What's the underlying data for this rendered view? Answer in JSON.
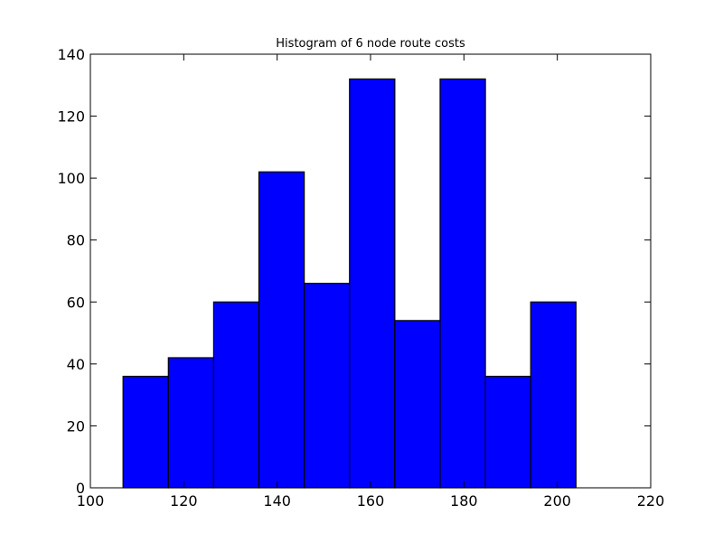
{
  "chart_data": {
    "type": "bar",
    "title": "Histogram of 6 node route costs",
    "xlabel": "",
    "ylabel": "",
    "bin_edges": [
      107,
      116.7,
      126.4,
      136.1,
      145.8,
      155.5,
      165.2,
      174.9,
      184.6,
      194.3,
      204
    ],
    "values": [
      36,
      42,
      60,
      102,
      66,
      132,
      54,
      132,
      36,
      60
    ],
    "xlim": [
      100,
      220
    ],
    "ylim": [
      0,
      140
    ],
    "xticks": [
      "100",
      "120",
      "140",
      "160",
      "180",
      "200",
      "220"
    ],
    "yticks": [
      "0",
      "20",
      "40",
      "60",
      "80",
      "100",
      "120",
      "140"
    ],
    "grid": false,
    "bar_color": "#0000ff",
    "edge_color": "#000000"
  }
}
